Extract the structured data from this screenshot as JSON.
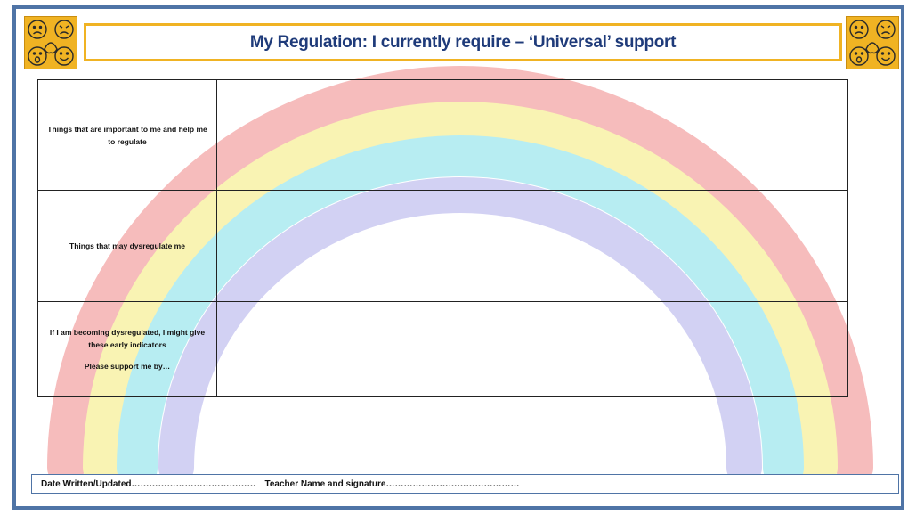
{
  "header": {
    "title": "My Regulation: I currently require – ‘Universal’ support",
    "logo_icon": "emotion-faces-icon"
  },
  "rows": [
    {
      "label": "Things that are important to me and help me to regulate",
      "value": ""
    },
    {
      "label": "Things that may dysregulate me",
      "value": ""
    },
    {
      "label": "If I am becoming dysregulated, I might give these early indicators",
      "label_extra": "Please support me by…",
      "value": ""
    }
  ],
  "footer": {
    "date_label": "Date Written/Updated……………………………………",
    "teacher_label": "Teacher Name and signature………………………………………"
  },
  "colors": {
    "frame": "#4f74a6",
    "title_text": "#1f3b7a",
    "title_border": "#f0b323",
    "logo_bg": "#f0b323",
    "rainbow": [
      "#f4a6a6",
      "#f8ef9a",
      "#9fe8ee",
      "#c3c2f0"
    ]
  }
}
